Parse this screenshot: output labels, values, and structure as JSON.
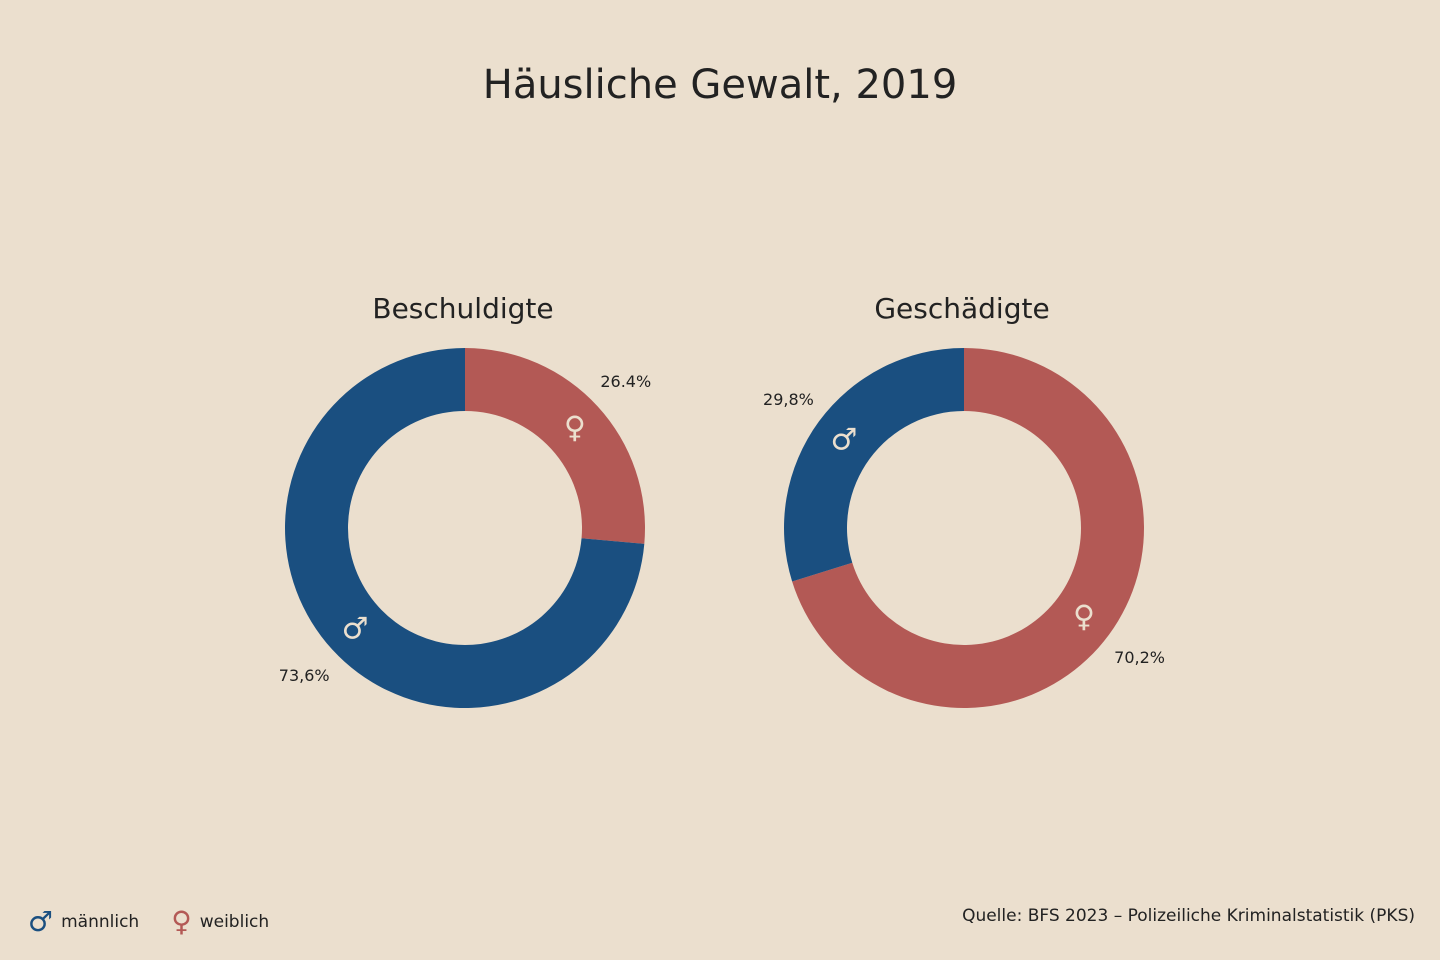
{
  "title": "Häusliche Gewalt, 2019",
  "colors": {
    "background": "#ebdfce",
    "male": "#1a4f80",
    "female": "#b35955",
    "icon_on_ring": "#ebdfce"
  },
  "chart_data": [
    {
      "type": "pie",
      "donut": true,
      "title": "Beschuldigte",
      "slices": [
        {
          "key": "female",
          "value": 26.4,
          "label": "26.4%",
          "icon": "female-symbol-icon"
        },
        {
          "key": "male",
          "value": 73.6,
          "label": "73,6%",
          "icon": "male-symbol-icon"
        }
      ]
    },
    {
      "type": "pie",
      "donut": true,
      "title": "Geschädigte",
      "slices": [
        {
          "key": "female",
          "value": 70.2,
          "label": "70,2%",
          "icon": "female-symbol-icon"
        },
        {
          "key": "male",
          "value": 29.8,
          "label": "29,8%",
          "icon": "male-symbol-icon"
        }
      ]
    }
  ],
  "legend": [
    {
      "key": "male",
      "label": "männlich",
      "icon": "male-symbol-icon"
    },
    {
      "key": "female",
      "label": "weiblich",
      "icon": "female-symbol-icon"
    }
  ],
  "legend_placement": "bottom-left",
  "source": "Quelle: BFS 2023 – Polizeiliche Kriminalstatistik (PKS)"
}
